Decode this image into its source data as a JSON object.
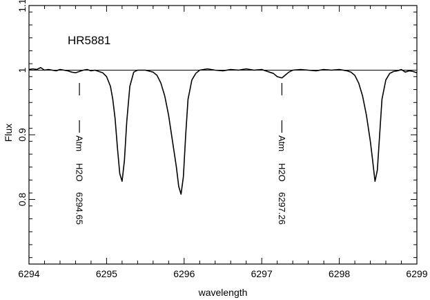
{
  "chart_data": {
    "type": "line",
    "title": "HR5881",
    "xlabel": "wavelength",
    "ylabel": "Flux",
    "xlim": [
      6294,
      6299
    ],
    "ylim": [
      0.7,
      1.1
    ],
    "xticks": [
      6294,
      6295,
      6296,
      6297,
      6298,
      6299
    ],
    "xtick_labels": [
      "6294",
      "6295",
      "6296",
      "6297",
      "6298",
      "6299"
    ],
    "yticks": [
      0.8,
      0.9,
      1.0,
      1.1
    ],
    "ytick_labels": [
      "0.8",
      "0.9",
      "1",
      "1.1"
    ],
    "grid": false,
    "reference_line": 1.0,
    "series": [
      {
        "x": [
          6294.0,
          6294.05,
          6294.1,
          6294.15,
          6294.2,
          6294.25,
          6294.3,
          6294.35,
          6294.4,
          6294.45,
          6294.5,
          6294.55,
          6294.6,
          6294.65,
          6294.7,
          6294.75,
          6294.8,
          6294.85,
          6294.9,
          6294.95,
          6295.0,
          6295.05,
          6295.08,
          6295.11,
          6295.14,
          6295.17,
          6295.2,
          6295.23,
          6295.26,
          6295.3,
          6295.35,
          6295.4,
          6295.5,
          6295.6,
          6295.65,
          6295.7,
          6295.75,
          6295.8,
          6295.85,
          6295.9,
          6295.93,
          6295.96,
          6295.99,
          6296.02,
          6296.05,
          6296.1,
          6296.15,
          6296.2,
          6296.3,
          6296.4,
          6296.5,
          6296.6,
          6296.7,
          6296.8,
          6296.9,
          6297.0,
          6297.1,
          6297.15,
          6297.2,
          6297.26,
          6297.3,
          6297.35,
          6297.4,
          6297.5,
          6297.6,
          6297.7,
          6297.8,
          6297.9,
          6298.0,
          6298.1,
          6298.15,
          6298.2,
          6298.25,
          6298.3,
          6298.35,
          6298.4,
          6298.43,
          6298.46,
          6298.49,
          6298.52,
          6298.55,
          6298.6,
          6298.65,
          6298.7,
          6298.75,
          6298.8,
          6298.85,
          6298.9,
          6298.95,
          6299.0
        ],
        "y": [
          1.001,
          1.002,
          1.001,
          1.004,
          1.0,
          1.001,
          1.0,
          0.999,
          1.001,
          1.0,
          0.999,
          0.997,
          0.996,
          0.998,
          1.0,
          1.001,
          0.999,
          1.0,
          0.998,
          0.996,
          0.99,
          0.975,
          0.955,
          0.925,
          0.88,
          0.84,
          0.828,
          0.86,
          0.92,
          0.975,
          0.997,
          1.0,
          1.0,
          0.997,
          0.992,
          0.98,
          0.96,
          0.93,
          0.89,
          0.85,
          0.82,
          0.808,
          0.835,
          0.9,
          0.955,
          0.985,
          0.995,
          1.0,
          1.002,
          1.0,
          0.999,
          1.001,
          1.0,
          1.002,
          1.0,
          1.001,
          0.997,
          0.995,
          0.99,
          0.988,
          0.992,
          0.997,
          1.0,
          1.001,
          1.0,
          0.999,
          1.001,
          1.0,
          1.001,
          0.999,
          0.997,
          0.992,
          0.98,
          0.96,
          0.93,
          0.89,
          0.86,
          0.828,
          0.845,
          0.9,
          0.955,
          0.985,
          0.995,
          0.998,
          0.999,
          1.001,
          0.997,
          0.999,
          0.998,
          0.996
        ]
      }
    ],
    "annotations": [
      {
        "x": 6294.65,
        "lines": [
          "Atm",
          "H2O",
          "6294.65"
        ]
      },
      {
        "x": 6297.26,
        "lines": [
          "Atm",
          "H2O",
          "6297.26"
        ]
      }
    ]
  }
}
